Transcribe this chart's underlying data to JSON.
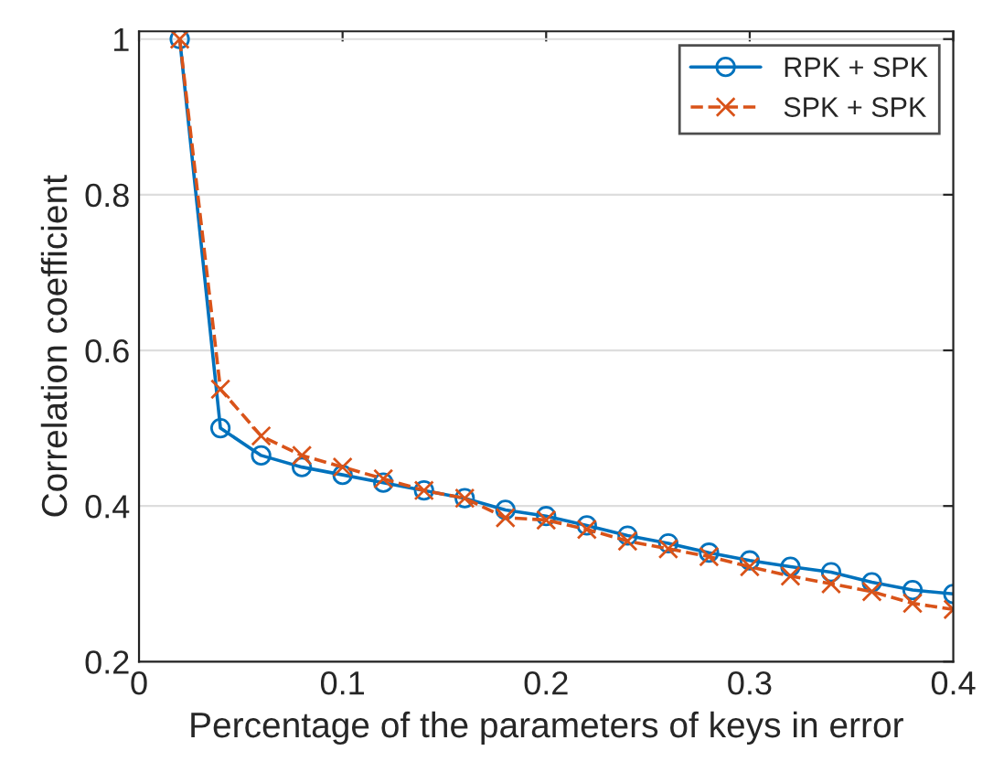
{
  "chart_data": {
    "type": "line",
    "xlabel": "Percentage of the parameters of keys in error",
    "ylabel": "Correlation coefficient",
    "x": [
      0.02,
      0.04,
      0.06,
      0.08,
      0.1,
      0.12,
      0.14,
      0.16,
      0.18,
      0.2,
      0.22,
      0.24,
      0.26,
      0.28,
      0.3,
      0.32,
      0.34,
      0.36,
      0.38,
      0.4
    ],
    "series": [
      {
        "name": "RPK + SPK",
        "color": "#0072bd",
        "marker": "circle",
        "line_style": "solid",
        "values": [
          1,
          0.5,
          0.465,
          0.45,
          0.44,
          0.43,
          0.42,
          0.41,
          0.395,
          0.387,
          0.375,
          0.362,
          0.352,
          0.34,
          0.33,
          0.322,
          0.315,
          0.302,
          0.292,
          0.287
        ]
      },
      {
        "name": "SPK + SPK",
        "color": "#d95319",
        "marker": "cross",
        "line_style": "dashed",
        "values": [
          1,
          0.55,
          0.49,
          0.465,
          0.45,
          0.435,
          0.42,
          0.41,
          0.385,
          0.382,
          0.37,
          0.355,
          0.345,
          0.335,
          0.322,
          0.31,
          0.3,
          0.29,
          0.275,
          0.267
        ]
      }
    ],
    "xlim": [
      0,
      0.4
    ],
    "xticks": [
      0,
      0.1,
      0.2,
      0.3,
      0.4
    ],
    "ylim": [
      0.2,
      1.01
    ],
    "yticks": [
      0.2,
      0.4,
      0.6,
      0.8,
      1
    ],
    "grid": "y",
    "legend": "top right"
  }
}
